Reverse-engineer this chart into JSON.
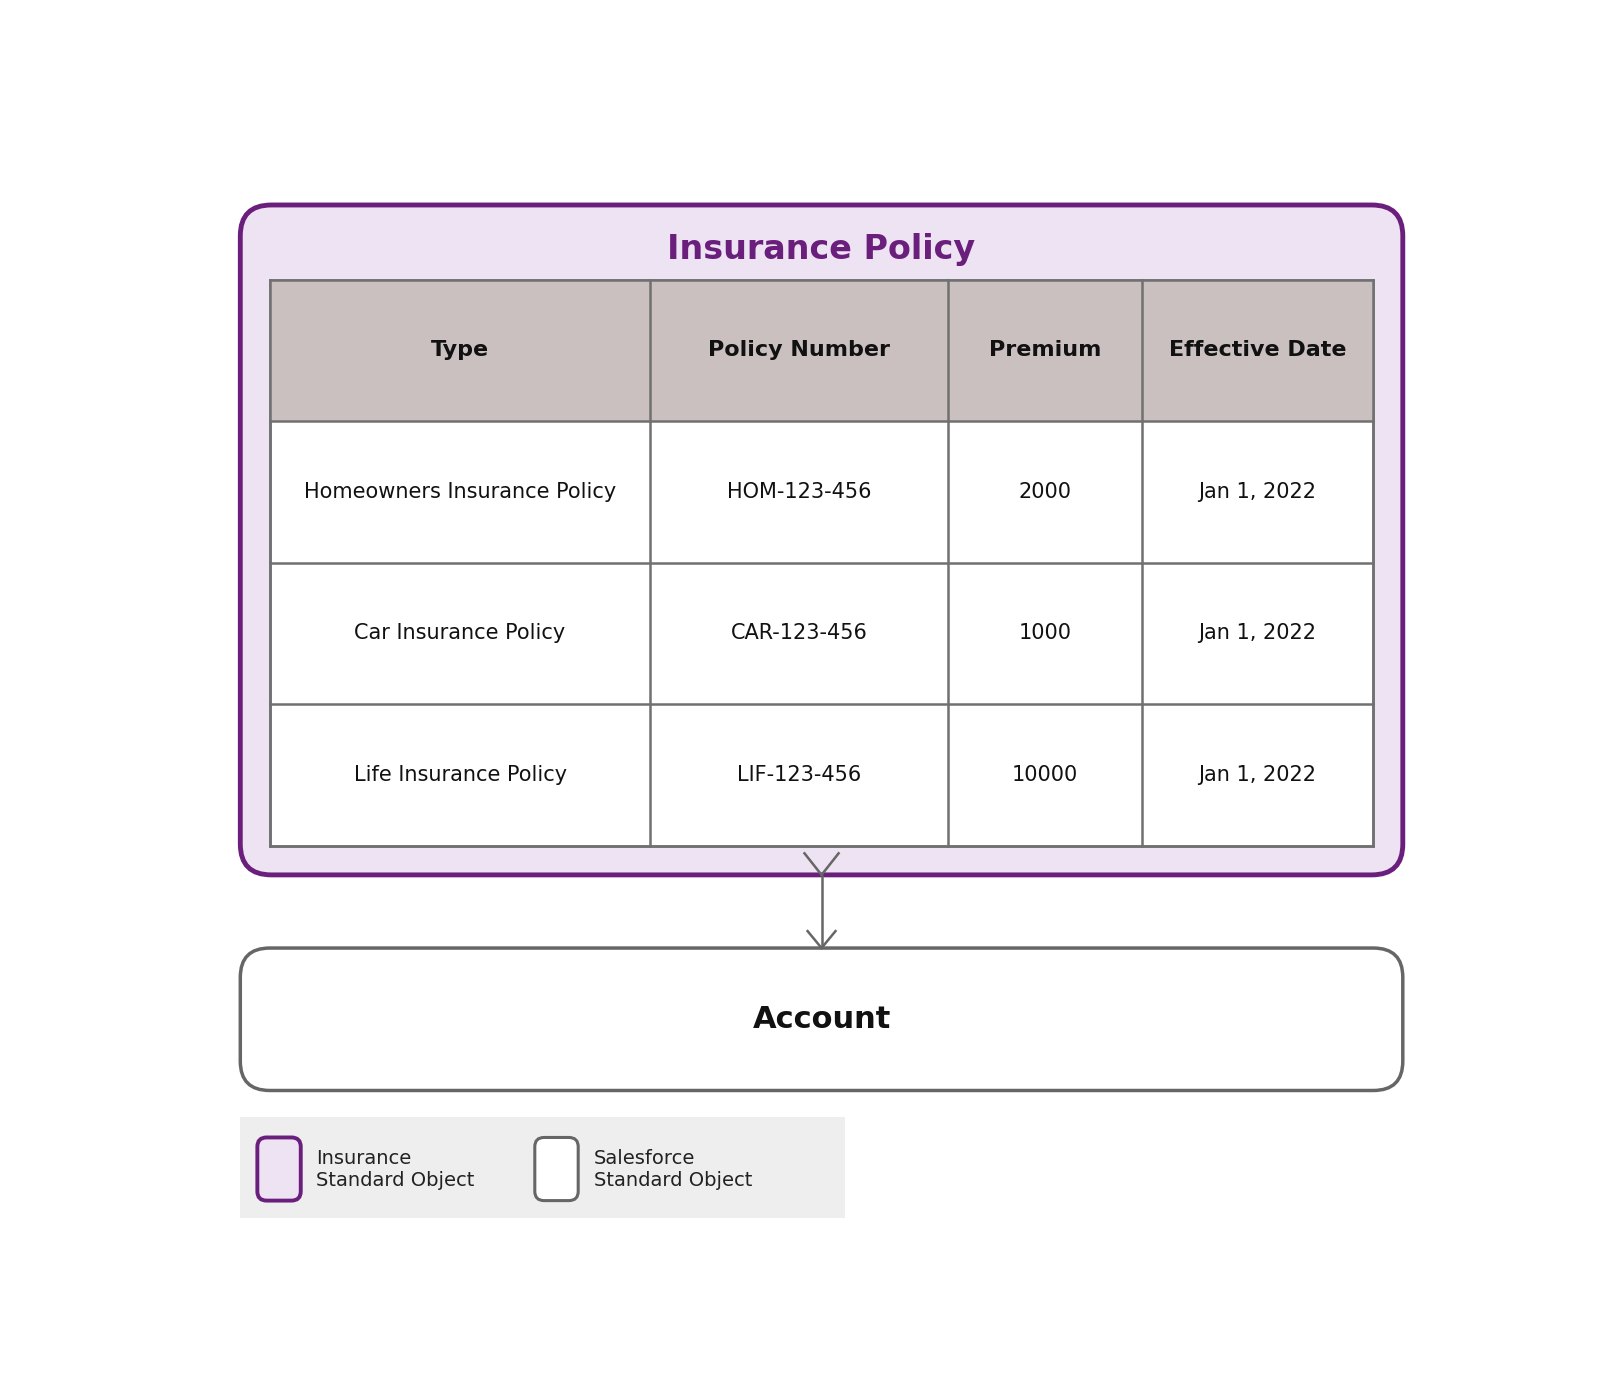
{
  "title": "Insurance Policy",
  "title_color": "#6B1F7C",
  "account_label": "Account",
  "account_label_color": "#111111",
  "table_headers": [
    "Type",
    "Policy Number",
    "Premium",
    "Effective Date"
  ],
  "table_rows": [
    [
      "Homeowners Insurance Policy",
      "HOM-123-456",
      "2000",
      "Jan 1, 2022"
    ],
    [
      "Car Insurance Policy",
      "CAR-123-456",
      "1000",
      "Jan 1, 2022"
    ],
    [
      "Life Insurance Policy",
      "LIF-123-456",
      "10000",
      "Jan 1, 2022"
    ]
  ],
  "outer_box_fill": "#EEE3F3",
  "outer_box_edge": "#6B1F7C",
  "table_header_fill": "#C9C0BF",
  "table_row_fill": "#FFFFFF",
  "table_border_color": "#707070",
  "account_box_fill": "#FFFFFF",
  "account_box_edge": "#666666",
  "connector_color": "#666666",
  "legend_box1_fill": "#EEE3F3",
  "legend_box1_edge": "#6B1F7C",
  "legend_box2_fill": "#FFFFFF",
  "legend_box2_edge": "#666666",
  "legend_label1": "Insurance\nStandard Object",
  "legend_label2": "Salesforce\nStandard Object",
  "legend_bg": "#EEEEEE",
  "background_color": "#FFFFFF",
  "fig_width": 16.0,
  "fig_height": 13.81
}
